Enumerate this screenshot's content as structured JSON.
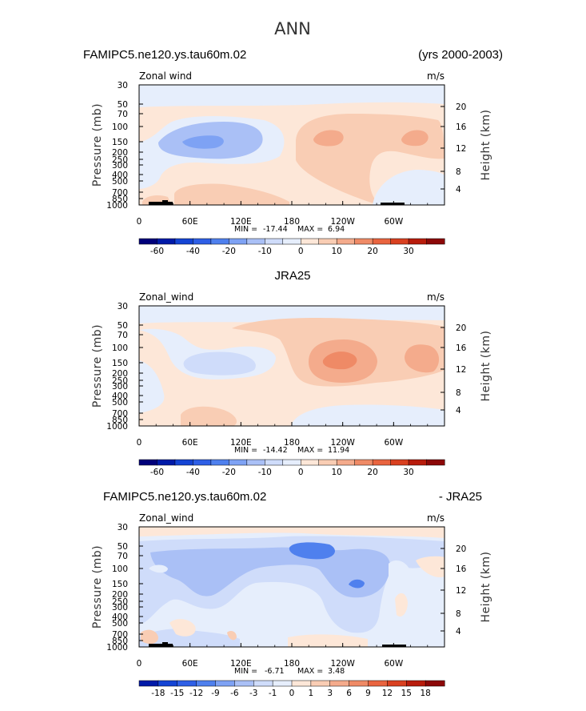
{
  "figure_title": "ANN",
  "colors": {
    "neg": [
      "#00007a",
      "#001aa8",
      "#1444d4",
      "#2e5fe6",
      "#4f80ee",
      "#7ea2f4",
      "#aac0f6",
      "#cfdcfa",
      "#e6eefc"
    ],
    "pos": [
      "#fde7d8",
      "#f9cdb4",
      "#f4ab8c",
      "#ef8a66",
      "#e9643f",
      "#d94020",
      "#b81c0c",
      "#8c0808"
    ]
  },
  "chart_data": [
    {
      "type": "heatmap",
      "title_left": "FAMIPC5.ne120.ys.tau60m.02",
      "title_right": "(yrs 2000-2003)",
      "variable": "Zonal wind",
      "units": "m/s",
      "ylabel_left": "Pressure (mb)",
      "ylabel_right": "Height (km)",
      "xticks": [
        "0",
        "60E",
        "120E",
        "180",
        "120W",
        "60W"
      ],
      "pressure_ticks": [
        "30",
        "50",
        "70",
        "100",
        "150",
        "200",
        "250",
        "300",
        "400",
        "500",
        "700",
        "850",
        "1000"
      ],
      "height_ticks": [
        "20",
        "16",
        "12",
        "8",
        "4"
      ],
      "min_label": "MIN =",
      "min_value": "-17.44",
      "max_label": "MAX =",
      "max_value": "6.94",
      "colorbar_labels": [
        "-60",
        "-40",
        "-20",
        "-10",
        "0",
        "10",
        "20",
        "30"
      ]
    },
    {
      "type": "heatmap",
      "title_left": "",
      "title_center": "JRA25",
      "title_right": "",
      "variable": "Zonal_wind",
      "units": "m/s",
      "ylabel_left": "Pressure (mb)",
      "ylabel_right": "Height (km)",
      "xticks": [
        "0",
        "60E",
        "120E",
        "180",
        "120W",
        "60W"
      ],
      "pressure_ticks": [
        "30",
        "50",
        "70",
        "100",
        "150",
        "200",
        "250",
        "300",
        "400",
        "500",
        "700",
        "850",
        "1000"
      ],
      "height_ticks": [
        "20",
        "16",
        "12",
        "8",
        "4"
      ],
      "min_label": "MIN =",
      "min_value": "-14.42",
      "max_label": "MAX =",
      "max_value": "11.94",
      "colorbar_labels": [
        "-60",
        "-40",
        "-20",
        "-10",
        "0",
        "10",
        "20",
        "30"
      ]
    },
    {
      "type": "heatmap",
      "title_left": "FAMIPC5.ne120.ys.tau60m.02",
      "title_right": "- JRA25",
      "variable": "Zonal_wind",
      "units": "m/s",
      "ylabel_left": "Pressure (mb)",
      "ylabel_right": "Height (km)",
      "xticks": [
        "0",
        "60E",
        "120E",
        "180",
        "120W",
        "60W"
      ],
      "pressure_ticks": [
        "30",
        "50",
        "70",
        "100",
        "150",
        "200",
        "250",
        "300",
        "400",
        "500",
        "700",
        "850",
        "1000"
      ],
      "height_ticks": [
        "20",
        "16",
        "12",
        "8",
        "4"
      ],
      "min_label": "MIN =",
      "min_value": "-6.71",
      "max_label": "MAX =",
      "max_value": "3.48",
      "colorbar_labels": [
        "-18",
        "-15",
        "-12",
        "-9",
        "-6",
        "-3",
        "-1",
        "0",
        "1",
        "3",
        "6",
        "9",
        "12",
        "15",
        "18"
      ]
    }
  ]
}
